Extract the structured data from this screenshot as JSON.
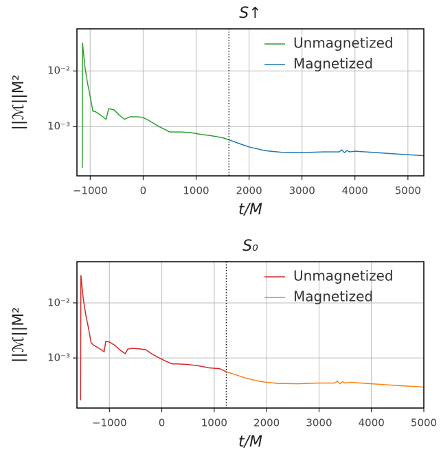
{
  "chart_data": [
    {
      "type": "line",
      "title": "S↑",
      "xlabel": "t/M",
      "ylabel": "||ℳ||M²",
      "log_y": true,
      "grid": true,
      "legend": "upper right",
      "xlim": [
        -1250,
        5300
      ],
      "ylim": [
        0.00013,
        0.057
      ],
      "xticks": [
        {
          "value": -1000,
          "label": "−1000"
        },
        0,
        1000,
        2000,
        3000,
        4000,
        5000
      ],
      "yticks": [
        {
          "value": 0.01,
          "label": "10⁻²"
        },
        {
          "value": 0.001,
          "label": "10⁻³"
        }
      ],
      "vline": 1620,
      "series": [
        {
          "name": "Unmagnetized",
          "color": "#2ca02c",
          "x": [
            -1150,
            -1145,
            -1100,
            -1050,
            -1000,
            -950,
            -900,
            -800,
            -700,
            -650,
            -550,
            -450,
            -350,
            -250,
            -100,
            0,
            100,
            300,
            500,
            700,
            900,
            1100,
            1300,
            1500,
            1620
          ],
          "values": [
            0.00018,
            0.032,
            0.012,
            0.006,
            0.0035,
            0.0019,
            0.00185,
            0.0016,
            0.00135,
            0.0021,
            0.002,
            0.0016,
            0.00135,
            0.0015,
            0.0015,
            0.00145,
            0.0013,
            0.001,
            0.0008,
            0.0008,
            0.00078,
            0.00072,
            0.00068,
            0.00063,
            0.00058
          ]
        },
        {
          "name": "Magnetized",
          "color": "#1f77b4",
          "x": [
            1620,
            1800,
            2000,
            2300,
            2600,
            3000,
            3400,
            3700,
            3750,
            3800,
            3850,
            3900,
            4000,
            4400,
            4800,
            5300
          ],
          "values": [
            0.00058,
            0.0005,
            0.00043,
            0.00037,
            0.000345,
            0.00034,
            0.00035,
            0.00035,
            0.00038,
            0.00034,
            0.00037,
            0.00035,
            0.00036,
            0.00034,
            0.00032,
            0.0003
          ]
        }
      ]
    },
    {
      "type": "line",
      "title": "S₀",
      "xlabel": "t/M",
      "ylabel": "||ℳ||M²",
      "log_y": true,
      "grid": true,
      "legend": "upper right",
      "xlim": [
        -1620,
        5000
      ],
      "ylim": [
        0.000123,
        0.056
      ],
      "xticks": [
        {
          "value": -1000,
          "label": "−1000"
        },
        0,
        1000,
        2000,
        3000,
        4000,
        5000
      ],
      "yticks": [
        {
          "value": 0.01,
          "label": "10⁻²"
        },
        {
          "value": 0.001,
          "label": "10⁻³"
        }
      ],
      "vline": 1230,
      "series": [
        {
          "name": "Unmagnetized",
          "color": "#d62728",
          "x": [
            -1550,
            -1545,
            -1500,
            -1450,
            -1400,
            -1350,
            -1300,
            -1200,
            -1100,
            -1070,
            -1000,
            -900,
            -800,
            -700,
            -650,
            -550,
            -400,
            -300,
            -200,
            -50,
            100,
            200,
            300,
            500,
            700,
            900,
            1100,
            1230
          ],
          "values": [
            0.00017,
            0.032,
            0.012,
            0.006,
            0.0035,
            0.0019,
            0.0017,
            0.0015,
            0.0013,
            0.002,
            0.00195,
            0.0017,
            0.0014,
            0.0012,
            0.00145,
            0.0015,
            0.00145,
            0.0014,
            0.0012,
            0.001,
            0.00085,
            0.00078,
            0.00078,
            0.00076,
            0.00072,
            0.00066,
            0.00064,
            0.00056
          ]
        },
        {
          "name": "Magnetized",
          "color": "#ff7f0e",
          "x": [
            1230,
            1400,
            1600,
            1900,
            2200,
            2600,
            3000,
            3300,
            3350,
            3400,
            3450,
            3500,
            3600,
            4000,
            4400,
            5000
          ],
          "values": [
            0.00056,
            0.0005,
            0.00043,
            0.00037,
            0.000345,
            0.00034,
            0.00035,
            0.00035,
            0.00038,
            0.00034,
            0.00037,
            0.00035,
            0.00036,
            0.00034,
            0.00032,
            0.000295
          ]
        }
      ]
    }
  ]
}
